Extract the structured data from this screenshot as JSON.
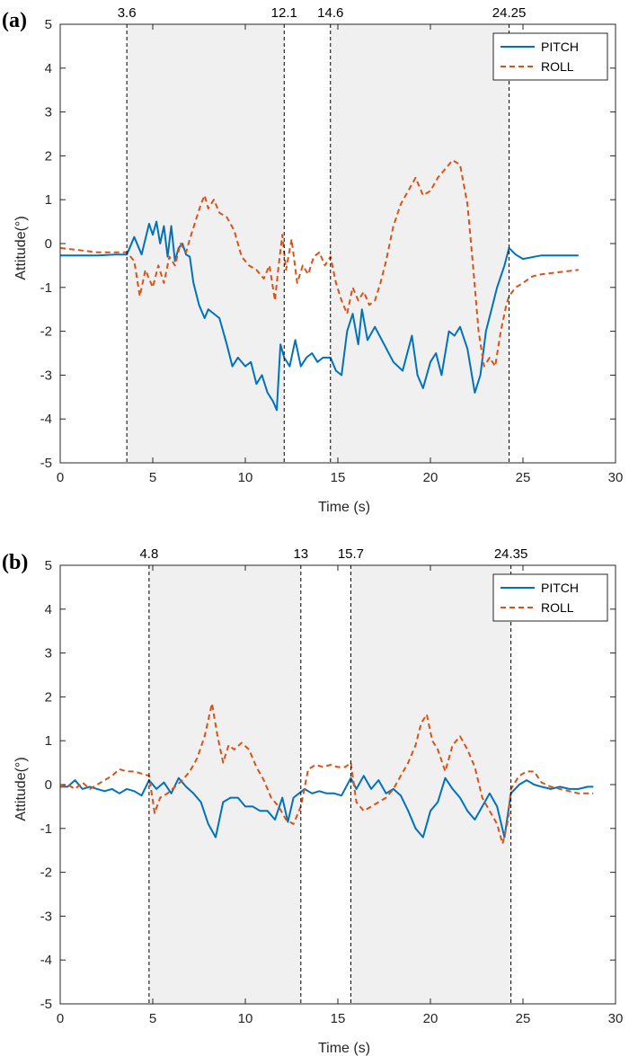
{
  "colors": {
    "pitch": "#0072BD",
    "roll": "#D95319",
    "shade": "#F0F0F0",
    "axis": "#262626"
  },
  "chart_data": [
    {
      "type": "line",
      "panel_label": "(a)",
      "xlabel": "Time (s)",
      "ylabel": "Attitude(°)",
      "xlim": [
        0,
        30
      ],
      "ylim": [
        -5,
        5
      ],
      "xticks": [
        0,
        5,
        10,
        15,
        20,
        25,
        30
      ],
      "yticks": [
        -5,
        -4,
        -3,
        -2,
        -1,
        0,
        1,
        2,
        3,
        4,
        5
      ],
      "legend_position": "top-right",
      "vlines": [
        3.6,
        12.1,
        14.6,
        24.25
      ],
      "vline_labels": [
        "3.6",
        "12.1",
        "14.6",
        "24.25"
      ],
      "shaded_intervals": [
        [
          3.6,
          12.1
        ],
        [
          14.6,
          24.25
        ]
      ],
      "series": [
        {
          "name": "PITCH",
          "style": "solid",
          "x": [
            0,
            1,
            2,
            3,
            3.6,
            4.0,
            4.4,
            4.8,
            5.0,
            5.2,
            5.4,
            5.6,
            5.8,
            6.0,
            6.2,
            6.4,
            6.6,
            6.8,
            7.0,
            7.2,
            7.5,
            7.8,
            8.0,
            8.3,
            8.6,
            9.0,
            9.3,
            9.6,
            10.0,
            10.3,
            10.6,
            10.9,
            11.2,
            11.5,
            11.7,
            11.9,
            12.1,
            12.4,
            12.7,
            13.0,
            13.3,
            13.6,
            13.9,
            14.2,
            14.6,
            14.9,
            15.2,
            15.5,
            15.8,
            16.1,
            16.3,
            16.6,
            17.0,
            17.5,
            18.0,
            18.5,
            19.0,
            19.3,
            19.6,
            20.0,
            20.3,
            20.6,
            21.0,
            21.3,
            21.6,
            22.0,
            22.4,
            22.7,
            23.0,
            23.3,
            23.6,
            24.0,
            24.25,
            24.6,
            25.0,
            26.0,
            27.0,
            28.0
          ],
          "y": [
            -0.27,
            -0.27,
            -0.27,
            -0.25,
            -0.25,
            0.15,
            -0.25,
            0.45,
            0.2,
            0.5,
            0.0,
            0.4,
            -0.3,
            0.4,
            -0.4,
            -0.1,
            0.0,
            -0.25,
            -0.3,
            -0.9,
            -1.4,
            -1.7,
            -1.5,
            -1.6,
            -1.7,
            -2.3,
            -2.8,
            -2.6,
            -2.8,
            -2.7,
            -3.2,
            -3.0,
            -3.4,
            -3.6,
            -3.8,
            -2.3,
            -2.6,
            -2.8,
            -2.2,
            -2.8,
            -2.6,
            -2.5,
            -2.7,
            -2.6,
            -2.6,
            -2.9,
            -3.0,
            -2.0,
            -1.6,
            -2.3,
            -1.5,
            -2.2,
            -1.9,
            -2.3,
            -2.7,
            -2.9,
            -2.1,
            -3.0,
            -3.3,
            -2.7,
            -2.5,
            -3.0,
            -2.0,
            -2.1,
            -1.9,
            -2.4,
            -3.4,
            -3.0,
            -2.0,
            -1.5,
            -1.0,
            -0.5,
            -0.1,
            -0.25,
            -0.35,
            -0.27,
            -0.27,
            -0.27
          ]
        },
        {
          "name": "ROLL",
          "style": "dashed",
          "x": [
            0,
            1,
            2,
            3,
            3.6,
            4.0,
            4.3,
            4.6,
            5.0,
            5.3,
            5.6,
            5.9,
            6.2,
            6.5,
            6.8,
            7.0,
            7.3,
            7.6,
            7.8,
            8.0,
            8.3,
            8.6,
            9.0,
            9.4,
            9.8,
            10.2,
            10.6,
            11.0,
            11.3,
            11.6,
            11.8,
            12.0,
            12.2,
            12.5,
            12.8,
            13.1,
            13.4,
            13.7,
            14.0,
            14.3,
            14.6,
            14.9,
            15.2,
            15.5,
            15.8,
            16.1,
            16.4,
            16.7,
            17.0,
            17.3,
            17.6,
            18.0,
            18.4,
            18.8,
            19.2,
            19.6,
            20.0,
            20.4,
            20.8,
            21.2,
            21.6,
            22.0,
            22.3,
            22.6,
            22.9,
            23.2,
            23.5,
            23.8,
            24.1,
            24.25,
            24.6,
            25.0,
            25.5,
            26.0,
            27.0,
            28.0
          ],
          "y": [
            -0.1,
            -0.15,
            -0.2,
            -0.2,
            -0.2,
            -0.4,
            -1.2,
            -0.6,
            -1.0,
            -0.5,
            -0.9,
            -0.3,
            -0.5,
            0.0,
            -0.2,
            0.1,
            0.5,
            0.9,
            1.1,
            0.8,
            1.0,
            0.7,
            0.6,
            0.3,
            -0.3,
            -0.5,
            -0.6,
            -0.8,
            -0.5,
            -1.3,
            -0.5,
            0.2,
            -0.6,
            0.1,
            -0.9,
            -0.5,
            -0.7,
            -0.3,
            -0.2,
            -0.5,
            -0.3,
            -0.9,
            -1.3,
            -1.6,
            -1.0,
            -1.3,
            -1.1,
            -1.4,
            -1.3,
            -0.9,
            -0.4,
            0.4,
            0.9,
            1.2,
            1.5,
            1.1,
            1.2,
            1.5,
            1.7,
            1.9,
            1.8,
            0.9,
            -0.5,
            -2.0,
            -2.8,
            -2.6,
            -2.8,
            -2.0,
            -1.4,
            -1.2,
            -1.0,
            -0.9,
            -0.75,
            -0.7,
            -0.65,
            -0.6
          ]
        }
      ]
    },
    {
      "type": "line",
      "panel_label": "(b)",
      "xlabel": "Time (s)",
      "ylabel": "Attitude(°)",
      "xlim": [
        0,
        30
      ],
      "ylim": [
        -5,
        5
      ],
      "xticks": [
        0,
        5,
        10,
        15,
        20,
        25,
        30
      ],
      "yticks": [
        -5,
        -4,
        -3,
        -2,
        -1,
        0,
        1,
        2,
        3,
        4,
        5
      ],
      "legend_position": "top-right",
      "vlines": [
        4.8,
        13,
        15.7,
        24.35
      ],
      "vline_labels": [
        "4.8",
        "13",
        "15.7",
        "24.35"
      ],
      "shaded_intervals": [
        [
          4.8,
          13
        ],
        [
          15.7,
          24.35
        ]
      ],
      "series": [
        {
          "name": "PITCH",
          "style": "solid",
          "x": [
            0,
            0.4,
            0.8,
            1.2,
            1.6,
            2.0,
            2.4,
            2.8,
            3.2,
            3.6,
            4.0,
            4.4,
            4.8,
            5.2,
            5.6,
            6.0,
            6.4,
            6.8,
            7.2,
            7.6,
            8.0,
            8.4,
            8.8,
            9.2,
            9.6,
            10.0,
            10.4,
            10.8,
            11.2,
            11.6,
            12.0,
            12.3,
            12.6,
            12.9,
            13.2,
            13.6,
            14.0,
            14.4,
            14.8,
            15.2,
            15.7,
            16.0,
            16.4,
            16.8,
            17.2,
            17.6,
            18.0,
            18.4,
            18.8,
            19.2,
            19.6,
            20.0,
            20.4,
            20.8,
            21.2,
            21.6,
            22.0,
            22.4,
            22.8,
            23.2,
            23.6,
            24.0,
            24.35,
            24.8,
            25.2,
            25.6,
            26.0,
            26.5,
            27.0,
            27.5,
            28.0,
            28.5,
            28.8
          ],
          "y": [
            -0.05,
            -0.05,
            0.1,
            -0.1,
            -0.05,
            -0.1,
            -0.15,
            -0.1,
            -0.2,
            -0.1,
            -0.15,
            -0.25,
            0.1,
            -0.1,
            0.05,
            -0.2,
            0.15,
            -0.05,
            -0.2,
            -0.4,
            -0.9,
            -1.2,
            -0.4,
            -0.3,
            -0.3,
            -0.5,
            -0.5,
            -0.6,
            -0.6,
            -0.8,
            -0.3,
            -0.85,
            -0.3,
            -0.2,
            -0.1,
            -0.2,
            -0.15,
            -0.2,
            -0.2,
            -0.25,
            0.15,
            -0.1,
            0.2,
            -0.1,
            0.1,
            -0.2,
            -0.1,
            -0.25,
            -0.6,
            -1.0,
            -1.2,
            -0.6,
            -0.4,
            0.15,
            -0.1,
            -0.3,
            -0.6,
            -0.8,
            -0.5,
            -0.2,
            -0.5,
            -1.2,
            -0.2,
            0.0,
            0.1,
            0.0,
            -0.05,
            -0.1,
            -0.05,
            -0.1,
            -0.1,
            -0.05,
            -0.05
          ]
        },
        {
          "name": "ROLL",
          "style": "dashed",
          "x": [
            0,
            0.4,
            0.8,
            1.2,
            1.6,
            2.0,
            2.4,
            2.8,
            3.2,
            3.6,
            4.0,
            4.4,
            4.8,
            5.1,
            5.4,
            5.8,
            6.2,
            6.6,
            7.0,
            7.4,
            7.8,
            8.2,
            8.5,
            8.8,
            9.1,
            9.4,
            9.8,
            10.2,
            10.6,
            11.0,
            11.4,
            11.8,
            12.2,
            12.6,
            13.0,
            13.4,
            13.8,
            14.2,
            14.6,
            15.0,
            15.4,
            15.7,
            16.0,
            16.4,
            16.8,
            17.2,
            17.6,
            18.0,
            18.4,
            18.8,
            19.2,
            19.5,
            19.8,
            20.1,
            20.4,
            20.8,
            21.2,
            21.6,
            22.0,
            22.4,
            22.8,
            23.2,
            23.6,
            23.9,
            24.2,
            24.35,
            24.8,
            25.2,
            25.6,
            26.0,
            26.5,
            27.0,
            27.5,
            28.0,
            28.5,
            28.8
          ],
          "y": [
            -0.05,
            0.0,
            -0.1,
            0.05,
            -0.1,
            0.0,
            0.1,
            0.2,
            0.35,
            0.3,
            0.3,
            0.25,
            0.2,
            -0.65,
            -0.3,
            -0.2,
            -0.05,
            0.1,
            0.3,
            0.6,
            1.1,
            1.85,
            1.1,
            0.5,
            0.9,
            0.8,
            0.95,
            0.8,
            0.4,
            0.1,
            -0.3,
            -0.5,
            -0.8,
            -0.9,
            -0.5,
            0.35,
            0.45,
            0.4,
            0.45,
            0.4,
            0.4,
            0.5,
            -0.4,
            -0.6,
            -0.5,
            -0.4,
            -0.3,
            -0.1,
            0.2,
            0.5,
            0.9,
            1.4,
            1.6,
            1.0,
            0.8,
            0.3,
            0.9,
            1.1,
            0.8,
            0.4,
            -0.3,
            -0.6,
            -0.9,
            -1.35,
            -0.8,
            -0.1,
            0.2,
            0.3,
            0.3,
            0.05,
            -0.05,
            -0.1,
            -0.15,
            -0.2,
            -0.2,
            -0.2
          ]
        }
      ]
    }
  ]
}
